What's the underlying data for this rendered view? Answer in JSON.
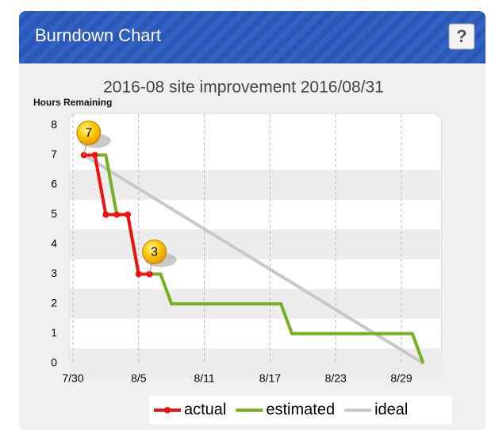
{
  "header": {
    "title": "Burndown Chart",
    "help": "?"
  },
  "chart_data": {
    "type": "line",
    "title": "2016-08 site improvement 2016/08/31",
    "y_label": "Hours Remaining",
    "xlim": [
      "7/30",
      "9/1"
    ],
    "xticks": [
      "7/30",
      "8/5",
      "8/11",
      "8/17",
      "8/23",
      "8/29"
    ],
    "ylim": [
      0,
      8
    ],
    "yticks": [
      0,
      1,
      2,
      3,
      4,
      5,
      6,
      7,
      8
    ],
    "grid": true,
    "legend": "bottom-right",
    "series": [
      {
        "name": "actual",
        "color": "#ee1111",
        "markers": true,
        "x": [
          "7/31",
          "8/1",
          "8/2",
          "8/3",
          "8/4",
          "8/5",
          "8/6"
        ],
        "values": [
          7,
          7,
          5,
          5,
          5,
          3,
          3
        ]
      },
      {
        "name": "estimated",
        "color": "#77b022",
        "x": [
          "7/31",
          "8/2",
          "8/3",
          "8/4",
          "8/5",
          "8/7",
          "8/8",
          "8/18",
          "8/19",
          "8/30",
          "8/31"
        ],
        "values": [
          7,
          7,
          5,
          5,
          3,
          3,
          2,
          2,
          1,
          1,
          0
        ]
      },
      {
        "name": "ideal",
        "color": "#c8c8c8",
        "x": [
          "7/31",
          "8/31"
        ],
        "values": [
          7,
          0
        ]
      }
    ],
    "annotations": [
      {
        "x": "7/31",
        "value": 7
      },
      {
        "x": "8/6",
        "value": 3
      }
    ]
  }
}
